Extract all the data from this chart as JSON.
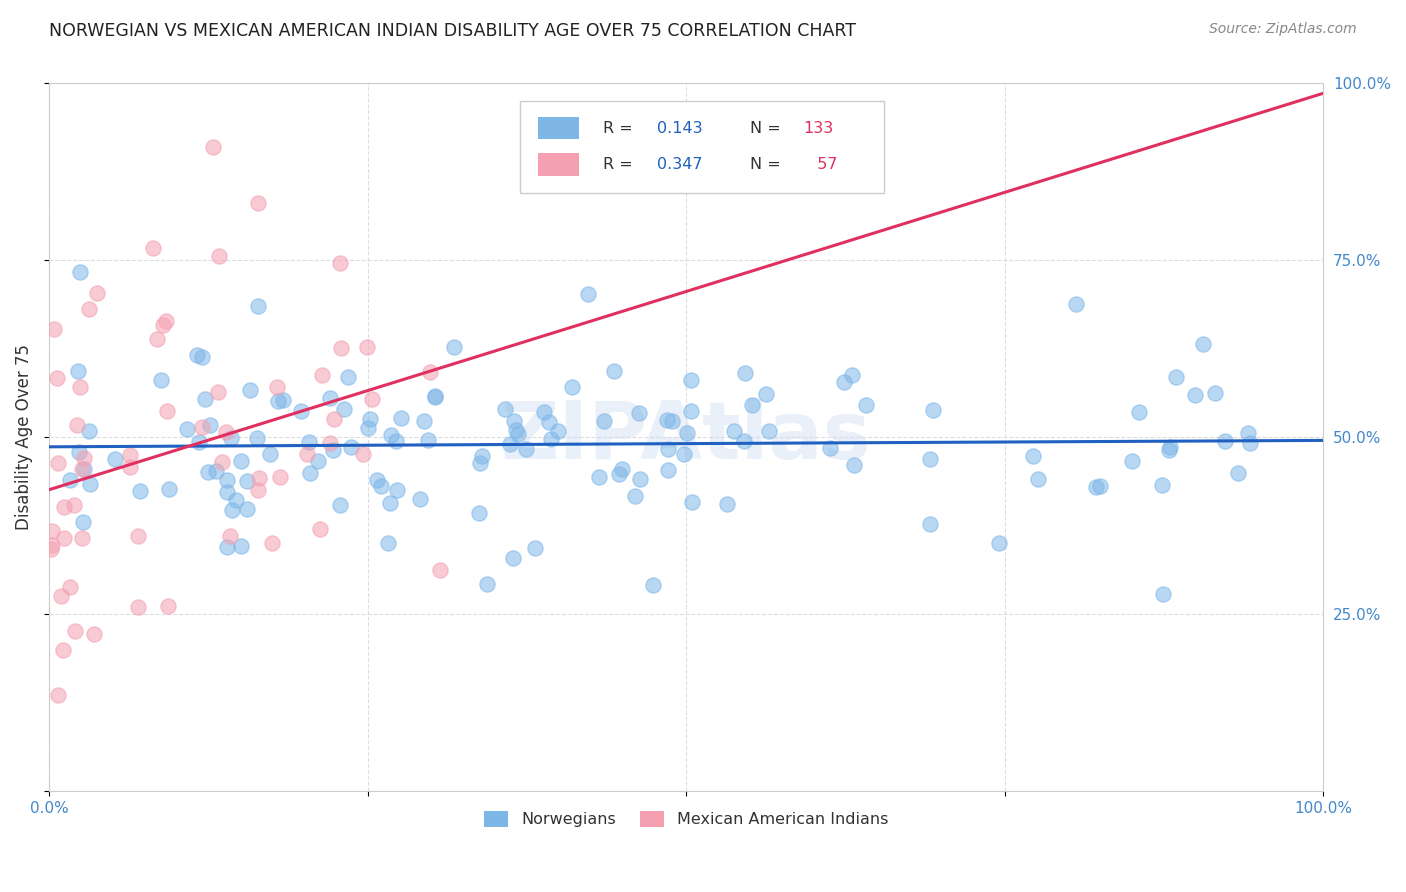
{
  "title": "NORWEGIAN VS MEXICAN AMERICAN INDIAN DISABILITY AGE OVER 75 CORRELATION CHART",
  "source": "Source: ZipAtlas.com",
  "ylabel": "Disability Age Over 75",
  "xlim": [
    0,
    1
  ],
  "ylim": [
    0,
    1
  ],
  "xticks": [
    0,
    0.25,
    0.5,
    0.75,
    1.0
  ],
  "yticks": [
    0,
    0.25,
    0.5,
    0.75,
    1.0
  ],
  "xticklabels": [
    "0.0%",
    "",
    "",
    "",
    "100.0%"
  ],
  "yticklabels_right": [
    "",
    "25.0%",
    "50.0%",
    "75.0%",
    "100.0%"
  ],
  "norwegian_R": 0.143,
  "norwegian_N": 133,
  "mexican_R": 0.347,
  "mexican_N": 57,
  "norwegian_color": "#7eb6e8",
  "mexican_color": "#f4a0b0",
  "norwegian_line_color": "#2060c0",
  "mexican_line_color": "#e03060",
  "watermark": "ZIPAtlas",
  "background_color": "#ffffff",
  "grid_color": "#dddddd",
  "title_color": "#222222",
  "axis_color": "#4488cc",
  "legend_R_color": "#2060c0",
  "legend_N_color": "#e03060"
}
